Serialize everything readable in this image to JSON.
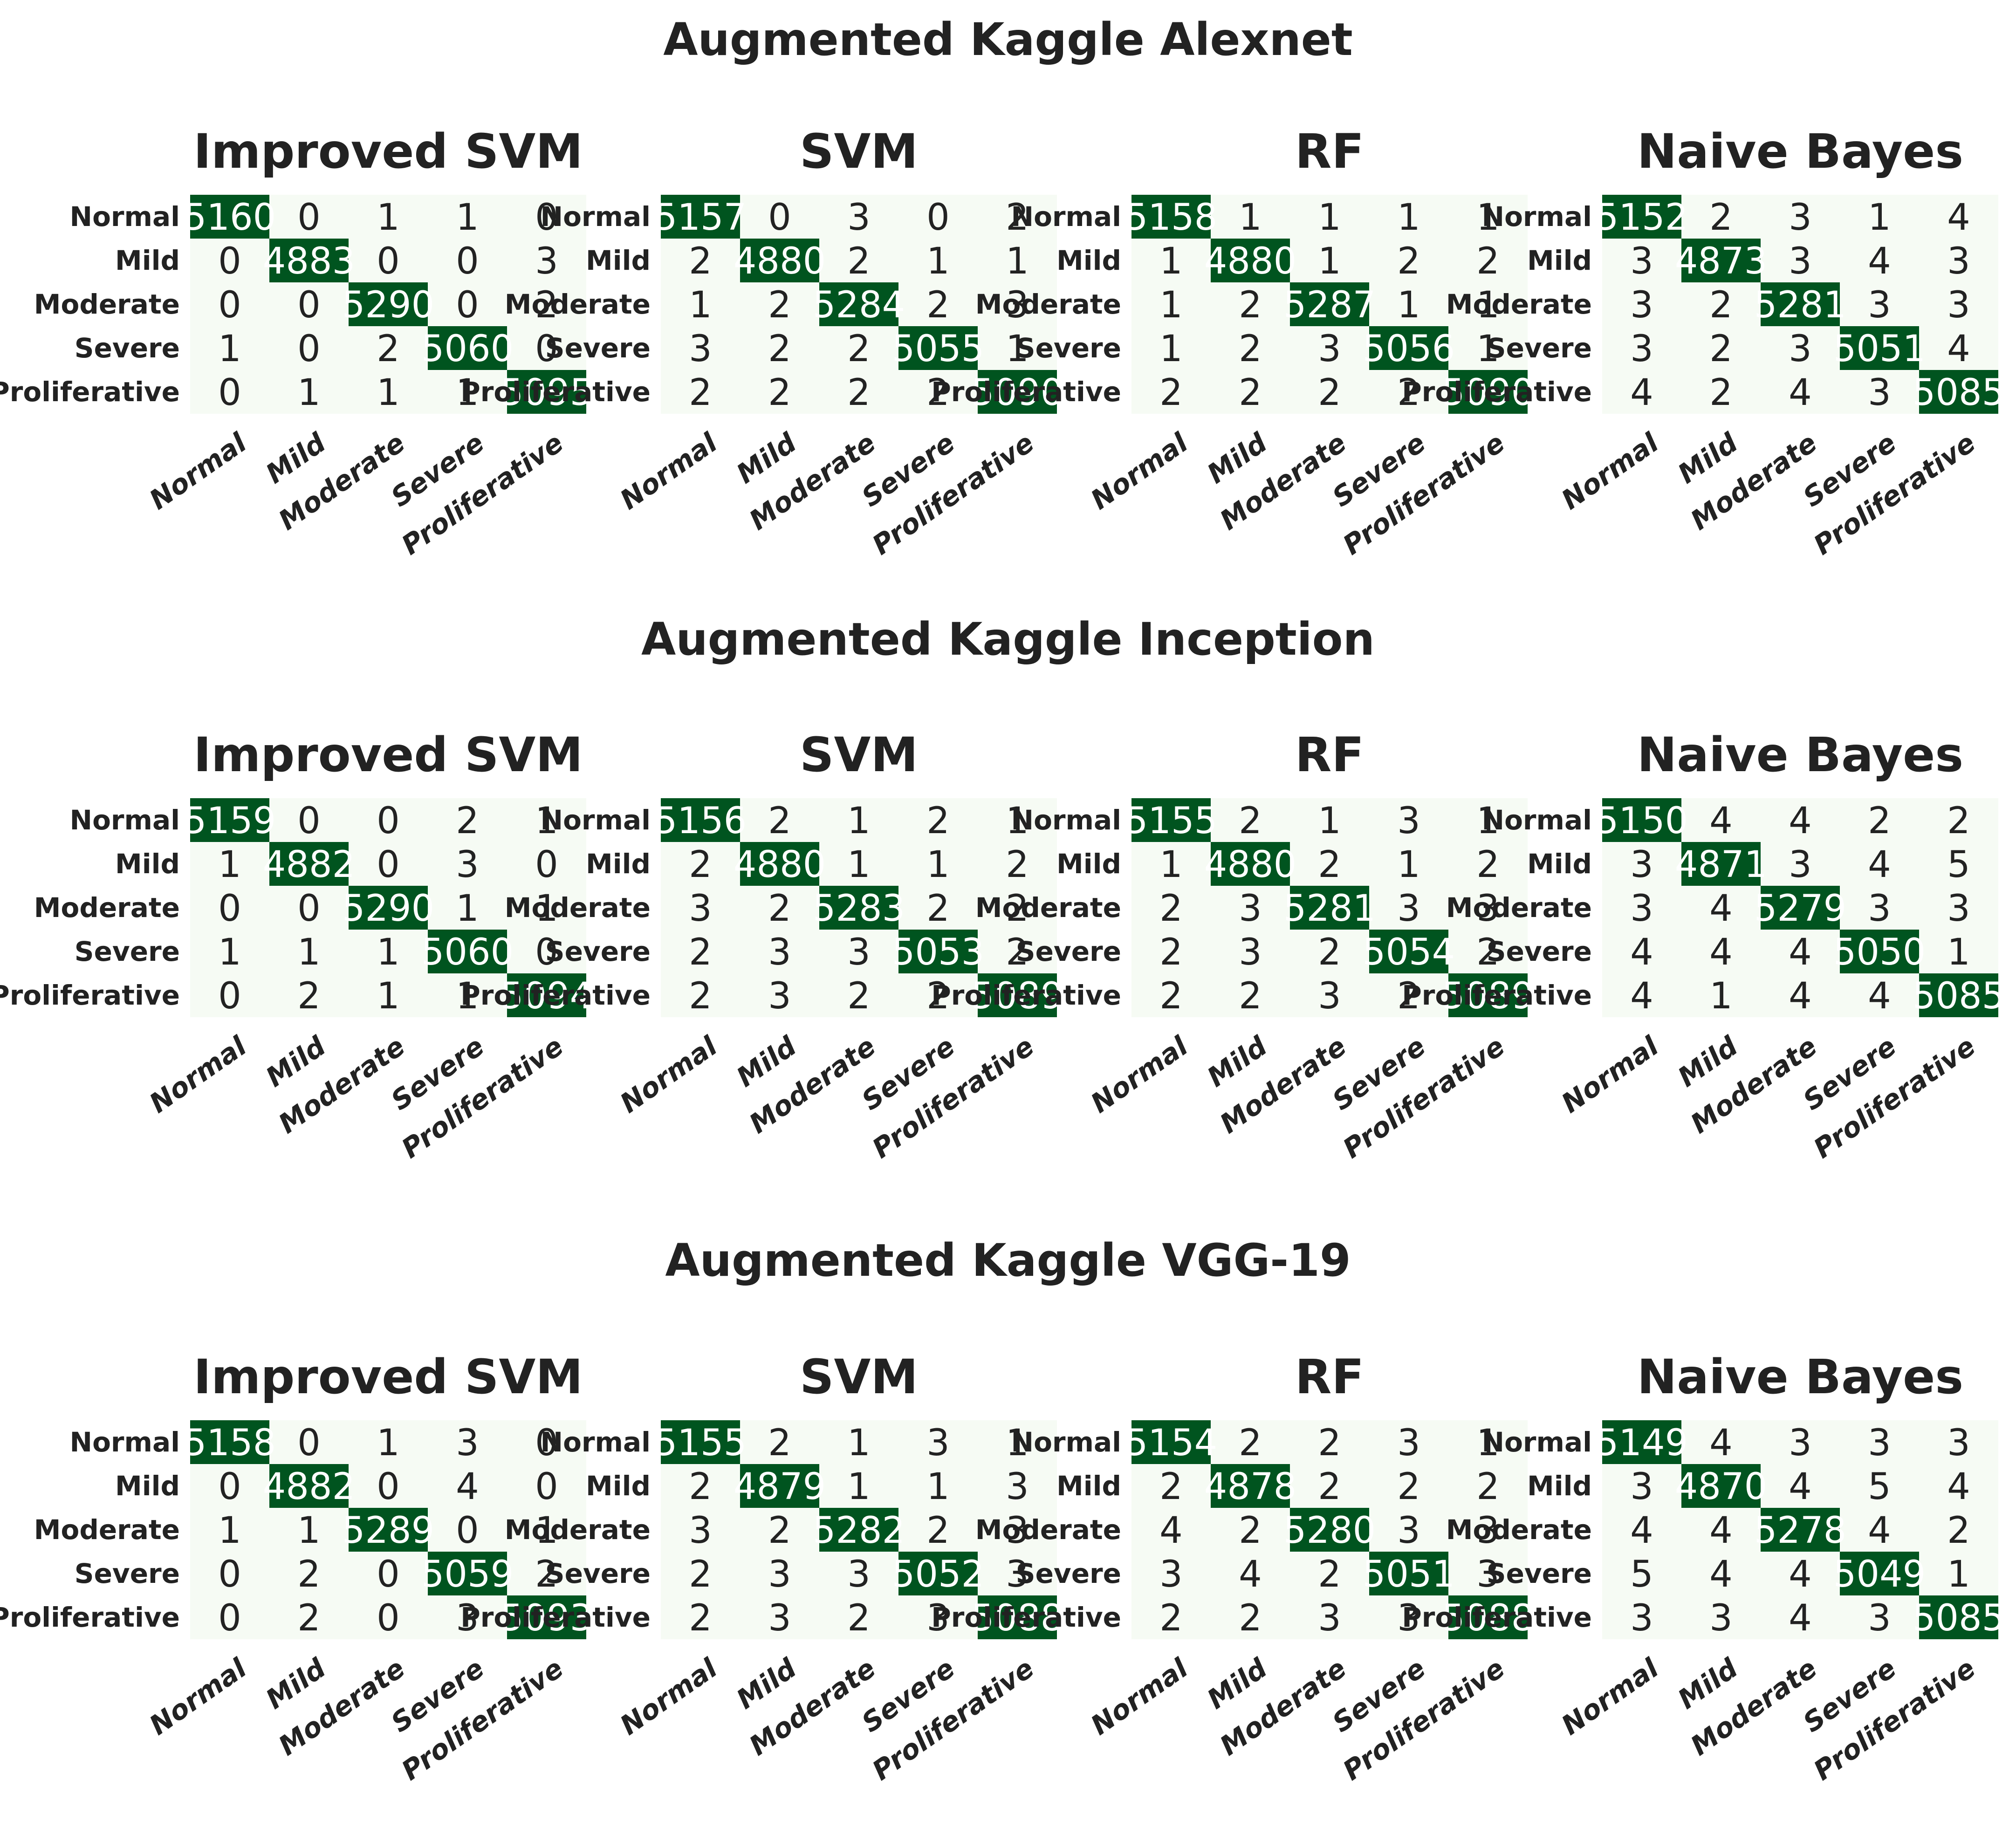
{
  "colors": {
    "background_cell": "#f6fbf4",
    "diagonal_cell": "#00541f",
    "text_dark": "#222222",
    "text_light": "#ffffff"
  },
  "chart_data": [
    {
      "type": "heatmap",
      "title": "Augmented Kaggle Alexnet",
      "classes": [
        "Normal",
        "Mild",
        "Moderate",
        "Severe",
        "Proliferative"
      ],
      "panels": [
        {
          "title": "Improved SVM",
          "matrix": [
            [
              5160,
              0,
              1,
              1,
              0
            ],
            [
              0,
              4883,
              0,
              0,
              3
            ],
            [
              0,
              0,
              5290,
              0,
              2
            ],
            [
              1,
              0,
              2,
              5060,
              0
            ],
            [
              0,
              1,
              1,
              1,
              5095
            ]
          ]
        },
        {
          "title": "SVM",
          "matrix": [
            [
              5157,
              0,
              3,
              0,
              2
            ],
            [
              2,
              4880,
              2,
              1,
              1
            ],
            [
              1,
              2,
              5284,
              2,
              3
            ],
            [
              3,
              2,
              2,
              5055,
              1
            ],
            [
              2,
              2,
              2,
              2,
              5090
            ]
          ]
        },
        {
          "title": "RF",
          "matrix": [
            [
              5158,
              1,
              1,
              1,
              1
            ],
            [
              1,
              4880,
              1,
              2,
              2
            ],
            [
              1,
              2,
              5287,
              1,
              1
            ],
            [
              1,
              2,
              3,
              5056,
              1
            ],
            [
              2,
              2,
              2,
              2,
              5090
            ]
          ]
        },
        {
          "title": "Naive Bayes",
          "matrix": [
            [
              5152,
              2,
              3,
              1,
              4
            ],
            [
              3,
              4873,
              3,
              4,
              3
            ],
            [
              3,
              2,
              5281,
              3,
              3
            ],
            [
              3,
              2,
              3,
              5051,
              4
            ],
            [
              4,
              2,
              4,
              3,
              5085
            ]
          ]
        }
      ]
    },
    {
      "type": "heatmap",
      "title": "Augmented Kaggle Inception",
      "classes": [
        "Normal",
        "Mild",
        "Moderate",
        "Severe",
        "Proliferative"
      ],
      "panels": [
        {
          "title": "Improved SVM",
          "matrix": [
            [
              5159,
              0,
              0,
              2,
              1
            ],
            [
              1,
              4882,
              0,
              3,
              0
            ],
            [
              0,
              0,
              5290,
              1,
              1
            ],
            [
              1,
              1,
              1,
              5060,
              0
            ],
            [
              0,
              2,
              1,
              1,
              5094
            ]
          ]
        },
        {
          "title": "SVM",
          "matrix": [
            [
              5156,
              2,
              1,
              2,
              1
            ],
            [
              2,
              4880,
              1,
              1,
              2
            ],
            [
              3,
              2,
              5283,
              2,
              2
            ],
            [
              2,
              3,
              3,
              5053,
              2
            ],
            [
              2,
              3,
              2,
              2,
              5089
            ]
          ]
        },
        {
          "title": "RF",
          "matrix": [
            [
              5155,
              2,
              1,
              3,
              1
            ],
            [
              1,
              4880,
              2,
              1,
              2
            ],
            [
              2,
              3,
              5281,
              3,
              3
            ],
            [
              2,
              3,
              2,
              5054,
              2
            ],
            [
              2,
              2,
              3,
              2,
              5089
            ]
          ]
        },
        {
          "title": "Naive Bayes",
          "matrix": [
            [
              5150,
              4,
              4,
              2,
              2
            ],
            [
              3,
              4871,
              3,
              4,
              5
            ],
            [
              3,
              4,
              5279,
              3,
              3
            ],
            [
              4,
              4,
              4,
              5050,
              1
            ],
            [
              4,
              1,
              4,
              4,
              5085
            ]
          ]
        }
      ]
    },
    {
      "type": "heatmap",
      "title": "Augmented Kaggle VGG-19",
      "classes": [
        "Normal",
        "Mild",
        "Moderate",
        "Severe",
        "Proliferative"
      ],
      "panels": [
        {
          "title": "Improved SVM",
          "matrix": [
            [
              5158,
              0,
              1,
              3,
              0
            ],
            [
              0,
              4882,
              0,
              4,
              0
            ],
            [
              1,
              1,
              5289,
              0,
              1
            ],
            [
              0,
              2,
              0,
              5059,
              2
            ],
            [
              0,
              2,
              0,
              3,
              5093
            ]
          ]
        },
        {
          "title": "SVM",
          "matrix": [
            [
              5155,
              2,
              1,
              3,
              1
            ],
            [
              2,
              4879,
              1,
              1,
              3
            ],
            [
              3,
              2,
              5282,
              2,
              3
            ],
            [
              2,
              3,
              3,
              5052,
              3
            ],
            [
              2,
              3,
              2,
              3,
              5088
            ]
          ]
        },
        {
          "title": "RF",
          "matrix": [
            [
              5154,
              2,
              2,
              3,
              1
            ],
            [
              2,
              4878,
              2,
              2,
              2
            ],
            [
              4,
              2,
              5280,
              3,
              3
            ],
            [
              3,
              4,
              2,
              5051,
              3
            ],
            [
              2,
              2,
              3,
              3,
              5088
            ]
          ]
        },
        {
          "title": "Naive Bayes",
          "matrix": [
            [
              5149,
              4,
              3,
              3,
              3
            ],
            [
              3,
              4870,
              4,
              5,
              4
            ],
            [
              4,
              4,
              5278,
              4,
              2
            ],
            [
              5,
              4,
              4,
              5049,
              1
            ],
            [
              3,
              3,
              4,
              3,
              5085
            ]
          ]
        }
      ]
    }
  ]
}
